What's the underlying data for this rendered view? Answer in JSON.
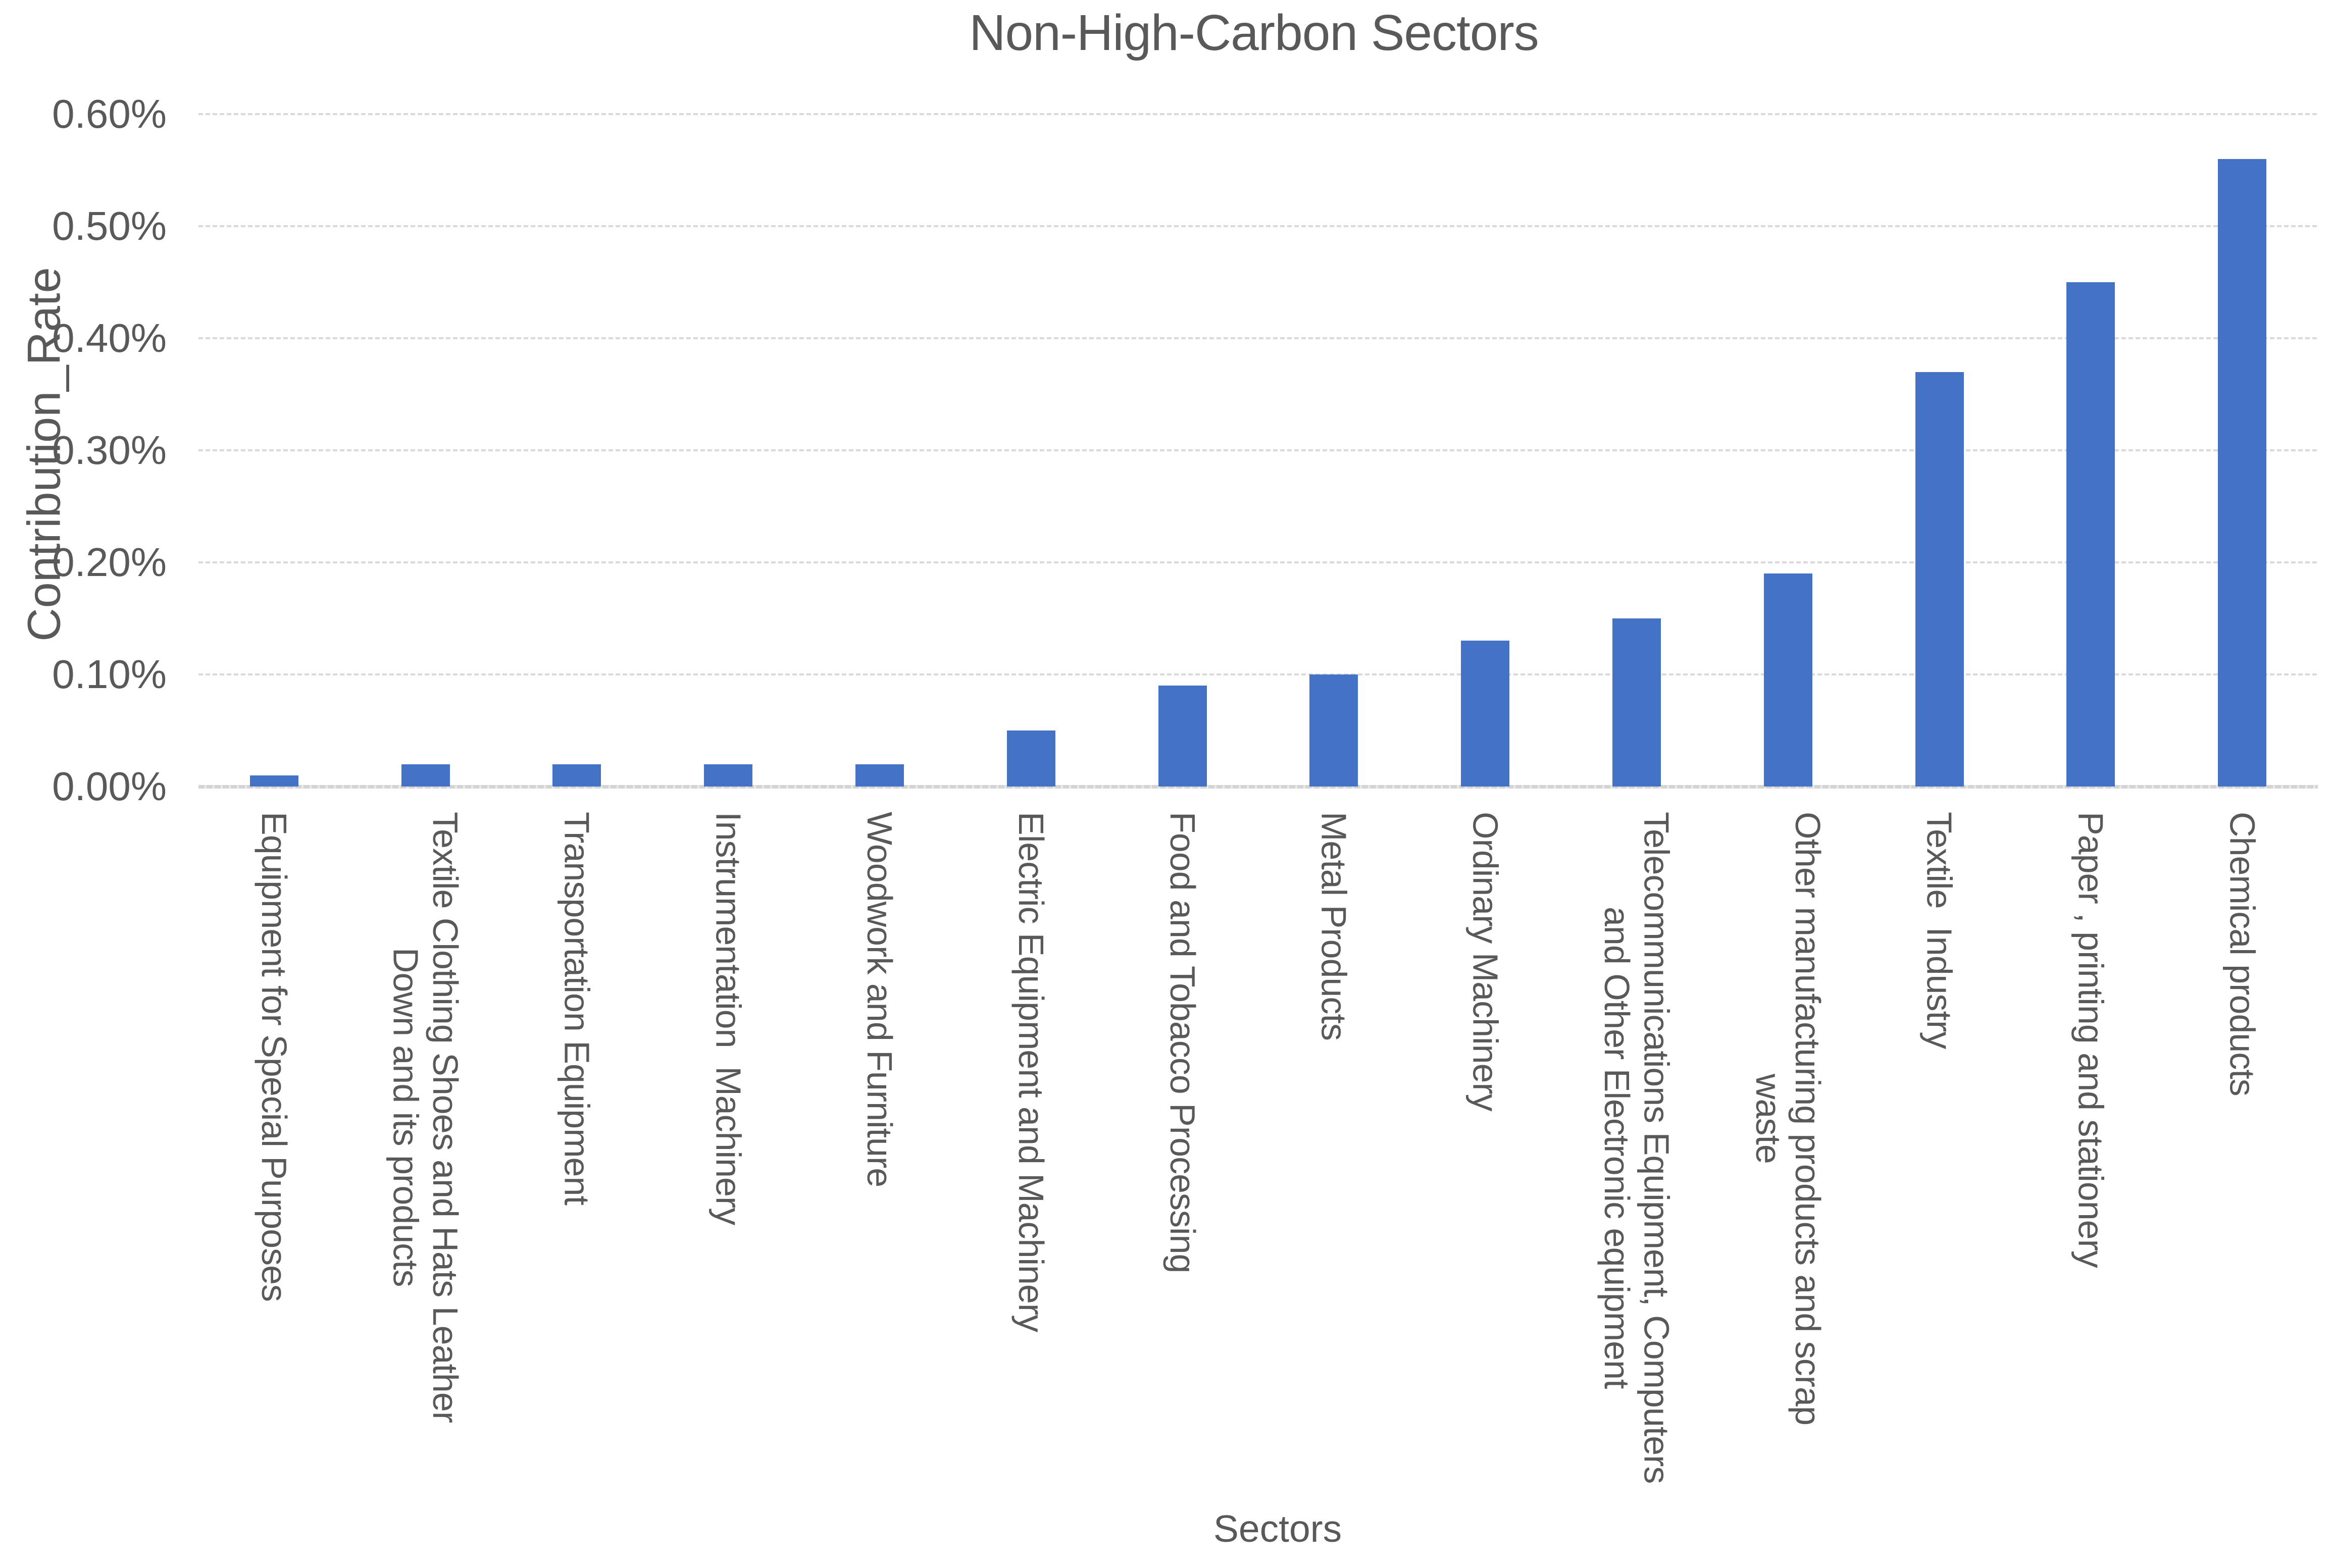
{
  "title": "Non-High-Carbon Sectors",
  "colors": {
    "bar": "#4472C4",
    "text": "#595959",
    "gridline": "#D9D9D9",
    "axis_line": "#D4D4D4",
    "background": "#FFFFFF"
  },
  "chart_data": {
    "type": "bar",
    "title": "Non-High-Carbon Sectors",
    "xlabel": "Sectors",
    "ylabel": "Contribution_Rate",
    "categories": [
      "Equipment for Special Purposes",
      "Textile Clothing Shoes and Hats Leather\nDown and its products",
      "Transportation Equipment",
      "Instrumentation  Machinery",
      "Woodwork and Furniture",
      "Electric Equipment and Machinery",
      "Food and Tobacco Processing",
      "Metal Products",
      "Ordinary Machinery",
      "Telecommunications Equipment, Computers\nand Other Electronic equipment",
      "Other manufacturing products and scrap\nwaste",
      "Textile  Industry",
      "Paper , printing and stationery",
      "Chemical products"
    ],
    "values": [
      0.01,
      0.02,
      0.02,
      0.02,
      0.02,
      0.05,
      0.09,
      0.1,
      0.13,
      0.15,
      0.19,
      0.37,
      0.45,
      0.56
    ],
    "value_unit": "%",
    "ylim": [
      0,
      0.6
    ],
    "ytick_step": 0.1,
    "ytick_labels": [
      "0.00%",
      "0.10%",
      "0.20%",
      "0.30%",
      "0.40%",
      "0.50%",
      "0.60%"
    ],
    "grid": true,
    "legend": "none",
    "bar_color": "#4472C4"
  }
}
